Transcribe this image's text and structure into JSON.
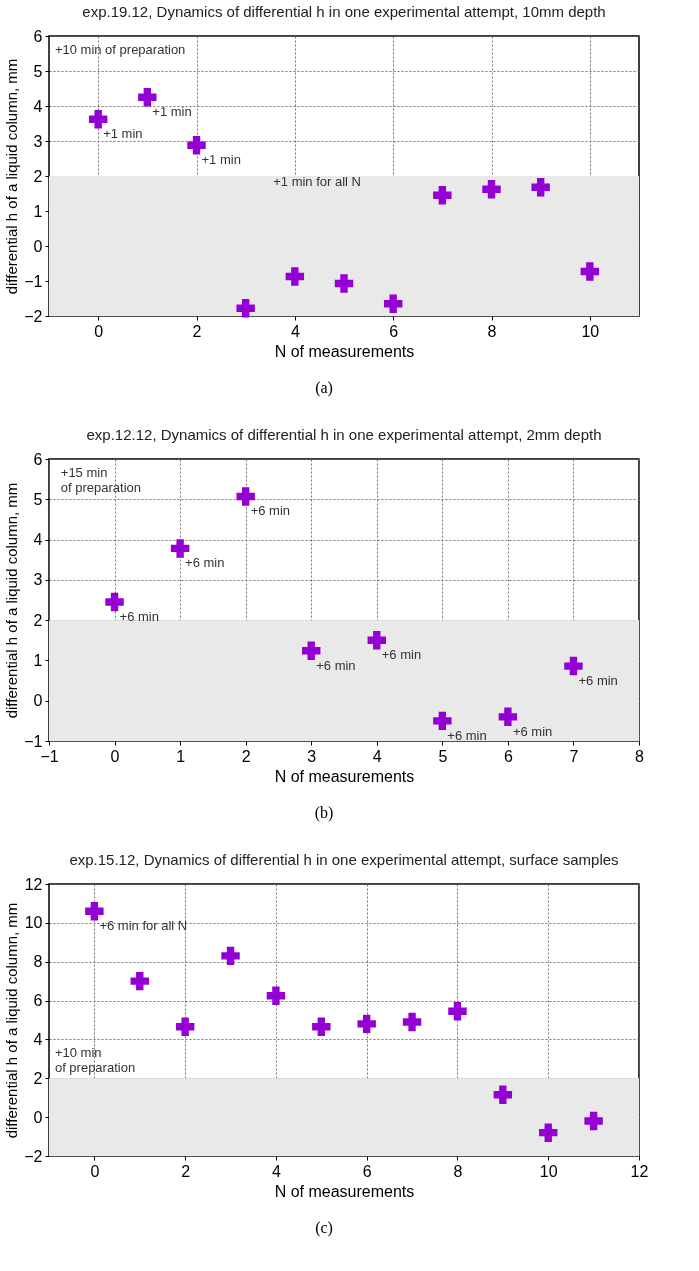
{
  "chart_data": [
    {
      "type": "scatter",
      "title": "exp.19.12, Dynamics of differential h in one experimental attempt, 10mm depth",
      "xlabel": "N of measurements",
      "ylabel": "differential h of a liquid column, mm",
      "x": [
        0,
        1,
        2,
        3,
        4,
        5,
        6,
        7,
        8,
        9,
        10
      ],
      "series": [
        {
          "color": "#9400d3",
          "values": [
            3.62,
            4.25,
            2.88,
            -1.78,
            -0.87,
            -1.07,
            -1.65,
            1.45,
            1.62,
            1.68,
            -0.73
          ]
        }
      ],
      "marker": "cross",
      "grid": true,
      "xlim": [
        -1,
        11
      ],
      "xticks": [
        0,
        2,
        4,
        6,
        8,
        10
      ],
      "ylim": [
        -2,
        6
      ],
      "yticks": [
        -2,
        -1,
        0,
        1,
        2,
        3,
        4,
        5,
        6
      ],
      "bands": [
        {
          "axis": "y",
          "from": -2,
          "to": 2,
          "color": "#e8e9e8"
        }
      ],
      "annotations": [
        "+10 min of preparation",
        {
          "text": "+1 min",
          "x": 0,
          "y": 3.62
        },
        {
          "text": "+1 min",
          "x": 1,
          "y": 4.25
        },
        {
          "text": "+1 min",
          "x": 2,
          "y": 2.88
        },
        "+1 min for all N",
        "(a)"
      ]
    },
    {
      "type": "scatter",
      "title": "exp.12.12, Dynamics of differential h in one experimental attempt, 2mm depth",
      "xlabel": "N of measurements",
      "ylabel": "differential h of a liquid column, mm",
      "x": [
        0,
        1,
        2,
        3,
        4,
        5,
        6,
        7
      ],
      "series": [
        {
          "color": "#9400d3",
          "values": [
            2.45,
            3.78,
            5.07,
            1.24,
            1.5,
            -0.5,
            -0.4,
            0.86
          ]
        }
      ],
      "marker": "cross",
      "grid": true,
      "xlim": [
        -1,
        8
      ],
      "xticks": [
        -1,
        0,
        1,
        2,
        3,
        4,
        5,
        6,
        7,
        8
      ],
      "ylim": [
        -1,
        6
      ],
      "yticks": [
        -1,
        0,
        1,
        2,
        3,
        4,
        5,
        6
      ],
      "bands": [
        {
          "axis": "y",
          "from": -1,
          "to": 2,
          "color": "#e8e9e8"
        }
      ],
      "annotations": [
        "+15 min\nof preparation",
        {
          "text": "+6 min",
          "x": 0,
          "y": 2.45
        },
        {
          "text": "+6 min",
          "x": 1,
          "y": 3.78
        },
        {
          "text": "+6 min",
          "x": 2,
          "y": 5.07
        },
        {
          "text": "+6 min",
          "x": 3,
          "y": 1.24
        },
        {
          "text": "+6 min",
          "x": 4,
          "y": 1.5
        },
        {
          "text": "+6 min",
          "x": 5,
          "y": -0.5
        },
        {
          "text": "+6 min",
          "x": 6,
          "y": -0.4
        },
        {
          "text": "+6 min",
          "x": 7,
          "y": 0.86
        },
        "(b)"
      ]
    },
    {
      "type": "scatter",
      "title": "exp.15.12, Dynamics of differential h in one experimental attempt, surface samples",
      "xlabel": "N of measurements",
      "ylabel": "differential h of a liquid column, mm",
      "x": [
        0,
        1,
        2,
        3,
        4,
        5,
        6,
        7,
        8,
        9,
        10,
        11
      ],
      "series": [
        {
          "color": "#9400d3",
          "values": [
            10.6,
            7.0,
            4.65,
            8.3,
            6.25,
            4.65,
            4.8,
            4.9,
            5.45,
            1.15,
            -0.8,
            -0.2
          ]
        }
      ],
      "marker": "cross",
      "grid": true,
      "xlim": [
        -1,
        12
      ],
      "xticks": [
        0,
        2,
        4,
        6,
        8,
        10,
        12
      ],
      "ylim": [
        -2,
        12
      ],
      "yticks": [
        -2,
        0,
        2,
        4,
        6,
        8,
        10,
        12
      ],
      "bands": [
        {
          "axis": "y",
          "from": -2,
          "to": 2,
          "color": "#e8e9e8"
        }
      ],
      "annotations": [
        {
          "text": "+6 min for all N",
          "x": 0,
          "y": 10.6
        },
        "+10 min\nof preparation",
        "(c)"
      ]
    }
  ]
}
